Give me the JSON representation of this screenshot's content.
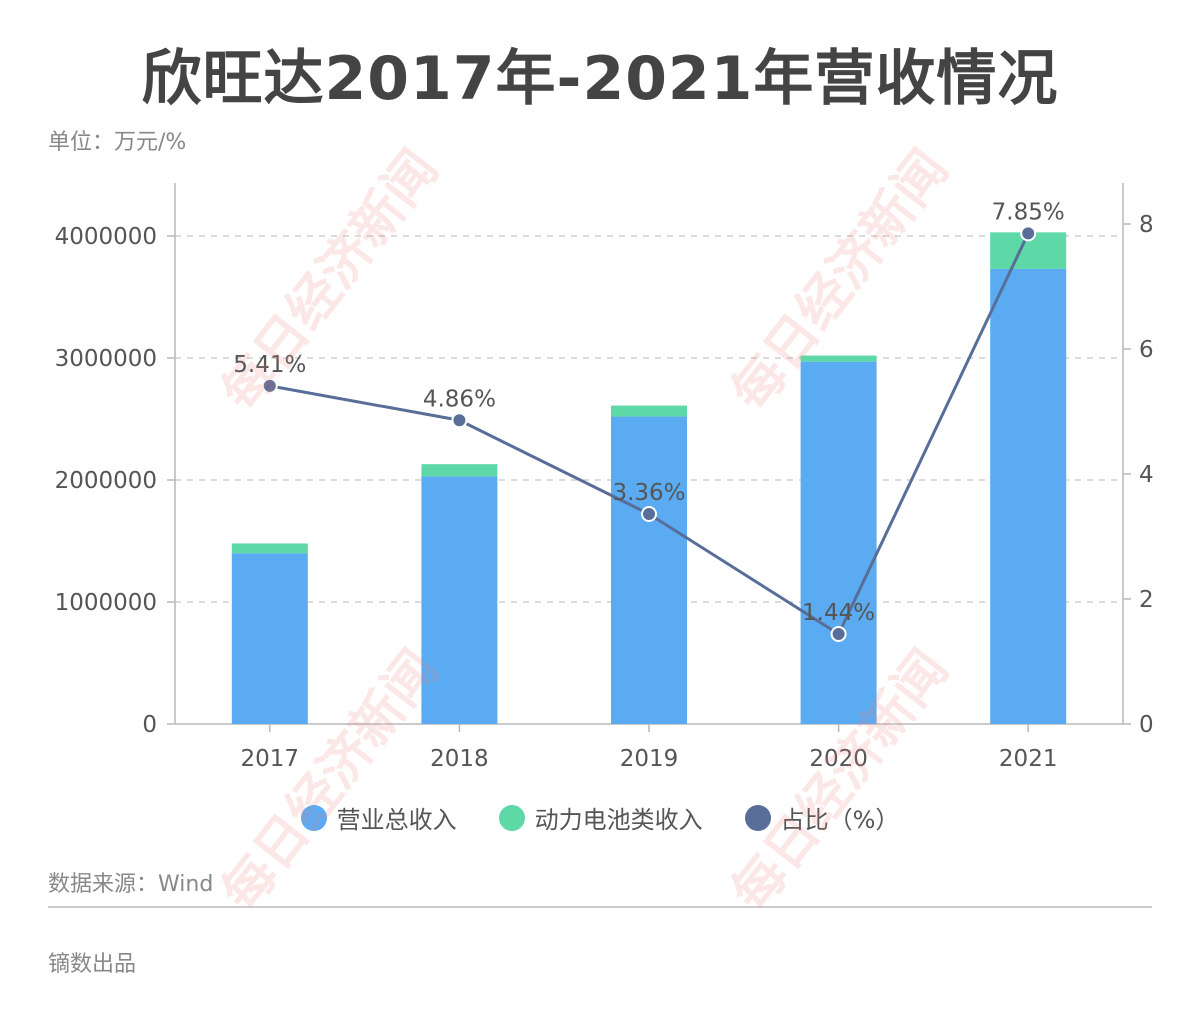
{
  "title": "欣旺达2017年-2021年营收情况",
  "unit": "单位：万元/%",
  "source": "数据来源：Wind",
  "producer": "镝数出品",
  "watermark": "每日经济新闻",
  "colors": {
    "revenue": "#5aabf2",
    "battery": "#5fd8a8",
    "ratio": "#586d98",
    "grid": "#cfcfcf",
    "axis": "#b9b9b9"
  },
  "chart_data": {
    "type": "bar",
    "categories": [
      "2017",
      "2018",
      "2019",
      "2020",
      "2021"
    ],
    "series": [
      {
        "name": "营业总收入",
        "type": "bar",
        "axis": "left",
        "values": [
          1400000,
          2030000,
          2520000,
          2970000,
          3730000
        ]
      },
      {
        "name": "动力电池类收入",
        "type": "bar",
        "stacked": true,
        "axis": "left",
        "values": [
          80000,
          100000,
          90000,
          50000,
          300000
        ]
      },
      {
        "name": "占比（%）",
        "type": "line",
        "axis": "right",
        "values": [
          5.41,
          4.86,
          3.36,
          1.44,
          7.85
        ],
        "labels": [
          "5.41%",
          "4.86%",
          "3.36%",
          "1.44%",
          "7.85%"
        ]
      }
    ],
    "ylim": [
      0,
      4000000
    ],
    "y_ticks": [
      "0",
      "1000000",
      "2000000",
      "3000000",
      "4000000"
    ],
    "y2lim": [
      0,
      8
    ],
    "y2_ticks": [
      "0",
      "2",
      "4",
      "6",
      "8"
    ],
    "grid": true,
    "legend_position": "bottom-center"
  }
}
